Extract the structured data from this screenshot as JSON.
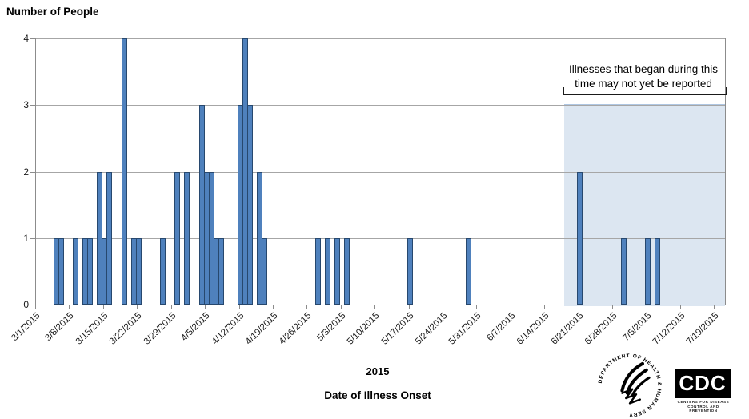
{
  "title": "Number of People",
  "annotation": {
    "line1": "Illnesses that began during this",
    "line2": "time may not yet be reported"
  },
  "footer": {
    "year_label": "2015",
    "axis_title": "Date of Illness Onset"
  },
  "y_axis": {
    "tick_labels": [
      "4",
      "3",
      "2",
      "1",
      "0"
    ]
  },
  "x_axis": {
    "tick_labels": [
      "3/1/2015",
      "3/8/2015",
      "3/15/2015",
      "3/22/2015",
      "3/29/2015",
      "4/5/2015",
      "4/12/2015",
      "4/19/2015",
      "4/26/2015",
      "5/3/2015",
      "5/10/2015",
      "5/17/2015",
      "5/24/2015",
      "5/31/2015",
      "6/7/2015",
      "6/14/2015",
      "6/21/2015",
      "6/28/2015",
      "7/5/2015",
      "7/12/2015",
      "7/19/2015"
    ]
  },
  "chart_data": {
    "type": "bar",
    "title": "Number of People",
    "xlabel": "Date of Illness Onset",
    "ylabel": "Number of People",
    "ylim": [
      0,
      4
    ],
    "y_ticks": [
      0,
      1,
      2,
      3,
      4
    ],
    "x_range": [
      "3/1/2015",
      "7/19/2015"
    ],
    "grid": "horizontal",
    "points": [
      {
        "date": "3/5/2015",
        "count": 1
      },
      {
        "date": "3/6/2015",
        "count": 1
      },
      {
        "date": "3/9/2015",
        "count": 1
      },
      {
        "date": "3/11/2015",
        "count": 1
      },
      {
        "date": "3/12/2015",
        "count": 1
      },
      {
        "date": "3/14/2015",
        "count": 2
      },
      {
        "date": "3/15/2015",
        "count": 1
      },
      {
        "date": "3/16/2015",
        "count": 2
      },
      {
        "date": "3/19/2015",
        "count": 4
      },
      {
        "date": "3/21/2015",
        "count": 1
      },
      {
        "date": "3/22/2015",
        "count": 1
      },
      {
        "date": "3/27/2015",
        "count": 1
      },
      {
        "date": "3/30/2015",
        "count": 2
      },
      {
        "date": "4/1/2015",
        "count": 2
      },
      {
        "date": "4/4/2015",
        "count": 3
      },
      {
        "date": "4/5/2015",
        "count": 2
      },
      {
        "date": "4/6/2015",
        "count": 2
      },
      {
        "date": "4/7/2015",
        "count": 1
      },
      {
        "date": "4/8/2015",
        "count": 1
      },
      {
        "date": "4/12/2015",
        "count": 3
      },
      {
        "date": "4/13/2015",
        "count": 4
      },
      {
        "date": "4/14/2015",
        "count": 3
      },
      {
        "date": "4/16/2015",
        "count": 2
      },
      {
        "date": "4/17/2015",
        "count": 1
      },
      {
        "date": "4/28/2015",
        "count": 1
      },
      {
        "date": "4/30/2015",
        "count": 1
      },
      {
        "date": "5/2/2015",
        "count": 1
      },
      {
        "date": "5/4/2015",
        "count": 1
      },
      {
        "date": "5/17/2015",
        "count": 1
      },
      {
        "date": "5/29/2015",
        "count": 1
      },
      {
        "date": "6/21/2015",
        "count": 2
      },
      {
        "date": "6/30/2015",
        "count": 1
      },
      {
        "date": "7/5/2015",
        "count": 1
      },
      {
        "date": "7/7/2015",
        "count": 1
      }
    ],
    "shaded_window": {
      "starts_at_date": "6/18/2015",
      "label_line1": "Illnesses that began during this",
      "label_line2": "time may not yet be reported"
    }
  },
  "colors": {
    "bar_fill": "#4f81bd",
    "bar_border": "#27486e",
    "gridline": "#a6a6a6",
    "axis": "#8c8c8c",
    "shaded_region": "#dce6f1",
    "shaded_region_border": "#aec6e2",
    "text": "#000000"
  },
  "logos": {
    "hhs_ring_text": "DEPARTMENT OF HEALTH & HUMAN SERVICES • USA",
    "cdc_acronym": "CDC",
    "cdc_caption_line1": "CENTERS FOR DISEASE",
    "cdc_caption_line2": "CONTROL AND PREVENTION"
  }
}
